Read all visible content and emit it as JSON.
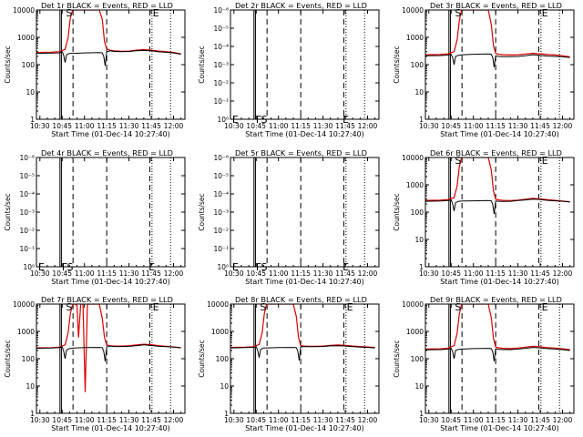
{
  "figure": {
    "shared": {
      "xlabel": "Start Time (01-Dec-14 10:27:40)",
      "xticks": [
        "10:30",
        "10:45",
        "11:00",
        "11:15",
        "11:30",
        "11:45",
        "12:00"
      ],
      "xtick_minutes": [
        30,
        45,
        60,
        75,
        90,
        105,
        120
      ],
      "xrange_minutes": [
        27.67,
        127.67
      ],
      "legend_text": "BLACK = Events, RED = LLD",
      "series_colors": {
        "events": "#000000",
        "lld": "#dd0000"
      },
      "marker_lines": {
        "solid": [
          43.5,
          44.5
        ],
        "dashed": [
          52.3,
          75.0,
          104.0
        ],
        "dotted": [
          105.5,
          118.0
        ]
      }
    },
    "scales": {
      "counts": {
        "ylabel": "Counts/sec",
        "type": "log",
        "ylim": [
          1,
          10000
        ],
        "ticks": [
          {
            "value": 1,
            "label": "1"
          },
          {
            "value": 10,
            "label": "10"
          },
          {
            "value": 100,
            "label": "100"
          },
          {
            "value": 1000,
            "label": "1000"
          },
          {
            "value": 10000,
            "label": "10000"
          }
        ]
      },
      "empty": {
        "ylabel": "Counts/sec",
        "type": "log",
        "ylim": [
          1,
          1e-06
        ],
        "ticks": [
          {
            "value": 1,
            "label": "10⁰"
          },
          {
            "value": 0.1,
            "label": "10⁻¹"
          },
          {
            "value": 0.01,
            "label": "10⁻²"
          },
          {
            "value": 0.001,
            "label": "10⁻³"
          },
          {
            "value": 0.0001,
            "label": "10⁻⁴"
          },
          {
            "value": 1e-05,
            "label": "10⁻⁵"
          },
          {
            "value": 1e-06,
            "label": "10⁻⁶"
          }
        ]
      }
    }
  },
  "chart_data": [
    {
      "type": "line",
      "title": "Det 1r BLACK = Events, RED = LLD",
      "scale": "counts",
      "ylabel": "Counts/sec",
      "xlabel": "Start Time (01-Dec-14 10:27:40)",
      "flags": [
        {
          "text": "S",
          "x": 47.5,
          "y": 8000
        },
        {
          "text": "E",
          "x": 106,
          "y": 8000
        }
      ],
      "series": [
        {
          "name": "Events",
          "color": "#000000",
          "x": [
            28,
            38,
            43,
            45,
            46,
            47,
            48,
            50,
            53,
            60,
            70,
            72,
            73,
            74,
            75,
            77,
            80,
            85,
            90,
            95,
            100,
            105,
            110,
            115,
            120,
            125
          ],
          "y": [
            260,
            265,
            270,
            300,
            220,
            120,
            230,
            260,
            260,
            270,
            275,
            270,
            200,
            90,
            290,
            320,
            305,
            300,
            305,
            320,
            330,
            320,
            295,
            285,
            270,
            240
          ]
        },
        {
          "name": "LLD",
          "color": "#dd0000",
          "x": [
            28,
            38,
            43,
            47,
            49,
            50.5,
            52,
            55,
            60,
            66,
            70,
            72,
            73.5,
            75,
            77,
            80,
            85,
            90,
            95,
            100,
            105,
            110,
            115,
            120,
            125
          ],
          "y": [
            280,
            285,
            300,
            360,
            1000,
            5000,
            15000,
            20000,
            20000,
            20000,
            15000,
            4500,
            700,
            380,
            340,
            320,
            310,
            315,
            340,
            355,
            340,
            315,
            300,
            280,
            250
          ]
        }
      ]
    },
    {
      "type": "line",
      "title": "Det 2r BLACK = Events, RED = LLD",
      "scale": "empty",
      "ylabel": "Counts/sec",
      "xlabel": "Start Time (01-Dec-14 10:27:40)",
      "flags": [
        {
          "text": "E",
          "x": 28.8,
          "y": 1.25
        },
        {
          "text": "F",
          "x": 44.8,
          "y": 1.25
        },
        {
          "text": "S",
          "x": 48.2,
          "y": 1.25
        },
        {
          "text": "E",
          "x": 103.2,
          "y": 1.25
        }
      ],
      "series": []
    },
    {
      "type": "line",
      "title": "Det 3r BLACK = Events, RED = LLD",
      "scale": "counts",
      "ylabel": "Counts/sec",
      "xlabel": "Start Time (01-Dec-14 10:27:40)",
      "flags": [
        {
          "text": "S",
          "x": 47.5,
          "y": 8000
        },
        {
          "text": "E",
          "x": 106,
          "y": 8000
        }
      ],
      "series": [
        {
          "name": "Events",
          "color": "#000000",
          "x": [
            28,
            38,
            43,
            45,
            46,
            47,
            48,
            50,
            53,
            60,
            70,
            72,
            73,
            74,
            75,
            77,
            80,
            85,
            90,
            95,
            100,
            105,
            110,
            115,
            120,
            125
          ],
          "y": [
            210,
            215,
            225,
            240,
            180,
            100,
            200,
            220,
            230,
            240,
            245,
            240,
            180,
            80,
            210,
            200,
            195,
            195,
            200,
            210,
            230,
            220,
            205,
            200,
            195,
            180
          ]
        },
        {
          "name": "LLD",
          "color": "#dd0000",
          "x": [
            28,
            38,
            43,
            47,
            49,
            50.5,
            52,
            55,
            60,
            66,
            70,
            72,
            73.5,
            75,
            77,
            80,
            85,
            90,
            95,
            100,
            105,
            110,
            115,
            120,
            125
          ],
          "y": [
            230,
            235,
            250,
            300,
            800,
            4000,
            15000,
            20000,
            20000,
            20000,
            15000,
            3000,
            500,
            260,
            240,
            230,
            225,
            230,
            245,
            260,
            250,
            235,
            225,
            210,
            195
          ]
        }
      ]
    },
    {
      "type": "line",
      "title": "Det 4r BLACK = Events, RED = LLD",
      "scale": "empty",
      "ylabel": "Counts/sec",
      "xlabel": "Start Time (01-Dec-14 10:27:40)",
      "flags": [
        {
          "text": "E",
          "x": 28.8,
          "y": 1.25
        },
        {
          "text": "F",
          "x": 44.8,
          "y": 1.25
        },
        {
          "text": "S",
          "x": 48.2,
          "y": 1.25
        },
        {
          "text": "E",
          "x": 103.2,
          "y": 1.25
        }
      ],
      "series": []
    },
    {
      "type": "line",
      "title": "Det 5r BLACK = Events, RED = LLD",
      "scale": "empty",
      "ylabel": "Counts/sec",
      "xlabel": "Start Time (01-Dec-14 10:27:40)",
      "flags": [
        {
          "text": "E",
          "x": 28.8,
          "y": 1.25
        },
        {
          "text": "F",
          "x": 44.8,
          "y": 1.25
        },
        {
          "text": "S",
          "x": 48.2,
          "y": 1.25
        },
        {
          "text": "E",
          "x": 103.2,
          "y": 1.25
        }
      ],
      "series": []
    },
    {
      "type": "line",
      "title": "Det 6r BLACK = Events, RED = LLD",
      "scale": "counts",
      "ylabel": "Counts/sec",
      "xlabel": "Start Time (01-Dec-14 10:27:40)",
      "flags": [
        {
          "text": "S",
          "x": 47.5,
          "y": 8000
        },
        {
          "text": "E",
          "x": 106,
          "y": 8000
        }
      ],
      "series": [
        {
          "name": "Events",
          "color": "#000000",
          "x": [
            28,
            38,
            43,
            45,
            46,
            47,
            48,
            50,
            53,
            60,
            70,
            72,
            73,
            74,
            75,
            77,
            80,
            85,
            90,
            95,
            100,
            105,
            110,
            115,
            120,
            125
          ],
          "y": [
            250,
            255,
            265,
            280,
            200,
            110,
            220,
            250,
            255,
            260,
            265,
            260,
            190,
            85,
            255,
            250,
            245,
            250,
            265,
            280,
            300,
            290,
            270,
            260,
            250,
            235
          ]
        },
        {
          "name": "LLD",
          "color": "#dd0000",
          "x": [
            28,
            38,
            43,
            47,
            49,
            50.5,
            52,
            55,
            60,
            66,
            70,
            72,
            73.5,
            75,
            77,
            80,
            85,
            90,
            95,
            100,
            105,
            110,
            115,
            120,
            125
          ],
          "y": [
            270,
            275,
            290,
            340,
            900,
            4500,
            15000,
            20000,
            20000,
            20000,
            15000,
            3500,
            600,
            300,
            280,
            270,
            265,
            275,
            295,
            320,
            305,
            285,
            270,
            255,
            240
          ]
        }
      ]
    },
    {
      "type": "line",
      "title": "Det 7r BLACK = Events, RED = LLD",
      "scale": "counts",
      "ylabel": "Counts/sec",
      "xlabel": "Start Time (01-Dec-14 10:27:40)",
      "flags": [
        {
          "text": "S",
          "x": 47.5,
          "y": 8000
        },
        {
          "text": "E",
          "x": 106,
          "y": 8000
        }
      ],
      "series": [
        {
          "name": "Events",
          "color": "#000000",
          "x": [
            28,
            38,
            43,
            45,
            46,
            47,
            48,
            50,
            53,
            60,
            70,
            72,
            73,
            74,
            75,
            77,
            80,
            85,
            90,
            95,
            100,
            105,
            110,
            115,
            120,
            125
          ],
          "y": [
            240,
            245,
            255,
            270,
            190,
            100,
            210,
            235,
            245,
            255,
            260,
            255,
            185,
            80,
            270,
            290,
            280,
            280,
            285,
            300,
            320,
            305,
            285,
            275,
            265,
            250
          ]
        },
        {
          "name": "LLD",
          "color": "#dd0000",
          "x": [
            28,
            38,
            43,
            47,
            49,
            50.5,
            52,
            53.5,
            55,
            56,
            57.5,
            59,
            60.5,
            62,
            63.5,
            65,
            68,
            70,
            72,
            73.5,
            75,
            77,
            80,
            85,
            90,
            95,
            100,
            105,
            110,
            115,
            120,
            125
          ],
          "y": [
            250,
            255,
            265,
            320,
            900,
            4500,
            15000,
            20000,
            9000,
            600,
            14000,
            20000,
            6,
            20000,
            18000,
            20000,
            18000,
            12000,
            3000,
            600,
            320,
            300,
            290,
            290,
            300,
            320,
            340,
            325,
            300,
            285,
            270,
            255
          ]
        }
      ]
    },
    {
      "type": "line",
      "title": "Det 8r BLACK = Events, RED = LLD",
      "scale": "counts",
      "ylabel": "Counts/sec",
      "xlabel": "Start Time (01-Dec-14 10:27:40)",
      "flags": [
        {
          "text": "S",
          "x": 47.5,
          "y": 8000
        },
        {
          "text": "E",
          "x": 106,
          "y": 8000
        }
      ],
      "series": [
        {
          "name": "Events",
          "color": "#000000",
          "x": [
            28,
            38,
            43,
            45,
            46,
            47,
            48,
            50,
            53,
            60,
            70,
            72,
            73,
            74,
            75,
            77,
            80,
            85,
            90,
            95,
            100,
            105,
            110,
            115,
            120,
            125
          ],
          "y": [
            250,
            255,
            260,
            275,
            200,
            110,
            220,
            245,
            250,
            255,
            260,
            255,
            190,
            85,
            270,
            280,
            275,
            275,
            280,
            295,
            300,
            290,
            275,
            265,
            260,
            250
          ]
        },
        {
          "name": "LLD",
          "color": "#dd0000",
          "x": [
            28,
            38,
            43,
            47,
            49,
            50.5,
            52,
            55,
            60,
            66,
            70,
            72,
            73.5,
            75,
            77,
            80,
            85,
            90,
            95,
            100,
            105,
            110,
            115,
            120,
            125
          ],
          "y": [
            260,
            265,
            275,
            330,
            900,
            4500,
            15000,
            20000,
            20000,
            20000,
            15000,
            3500,
            600,
            300,
            290,
            285,
            285,
            290,
            310,
            320,
            310,
            290,
            280,
            270,
            260
          ]
        }
      ]
    },
    {
      "type": "line",
      "title": "Det 9r BLACK = Events, RED = LLD",
      "scale": "counts",
      "ylabel": "Counts/sec",
      "xlabel": "Start Time (01-Dec-14 10:27:40)",
      "flags": [
        {
          "text": "S",
          "x": 47.5,
          "y": 8000
        },
        {
          "text": "E",
          "x": 106,
          "y": 8000
        }
      ],
      "series": [
        {
          "name": "Events",
          "color": "#000000",
          "x": [
            28,
            38,
            43,
            45,
            46,
            47,
            48,
            50,
            53,
            60,
            70,
            72,
            73,
            74,
            75,
            77,
            80,
            85,
            90,
            95,
            100,
            105,
            110,
            115,
            120,
            125
          ],
          "y": [
            210,
            215,
            225,
            240,
            180,
            100,
            200,
            220,
            225,
            235,
            240,
            235,
            180,
            80,
            230,
            220,
            215,
            215,
            225,
            240,
            260,
            250,
            235,
            225,
            215,
            200
          ]
        },
        {
          "name": "LLD",
          "color": "#dd0000",
          "x": [
            28,
            38,
            43,
            47,
            49,
            50.5,
            52,
            55,
            60,
            66,
            70,
            72,
            73.5,
            75,
            77,
            80,
            85,
            90,
            95,
            100,
            105,
            110,
            115,
            120,
            125
          ],
          "y": [
            225,
            230,
            245,
            300,
            850,
            4200,
            15000,
            20000,
            20000,
            20000,
            15000,
            3200,
            550,
            270,
            250,
            240,
            235,
            245,
            265,
            285,
            275,
            255,
            245,
            230,
            215
          ]
        }
      ]
    }
  ]
}
